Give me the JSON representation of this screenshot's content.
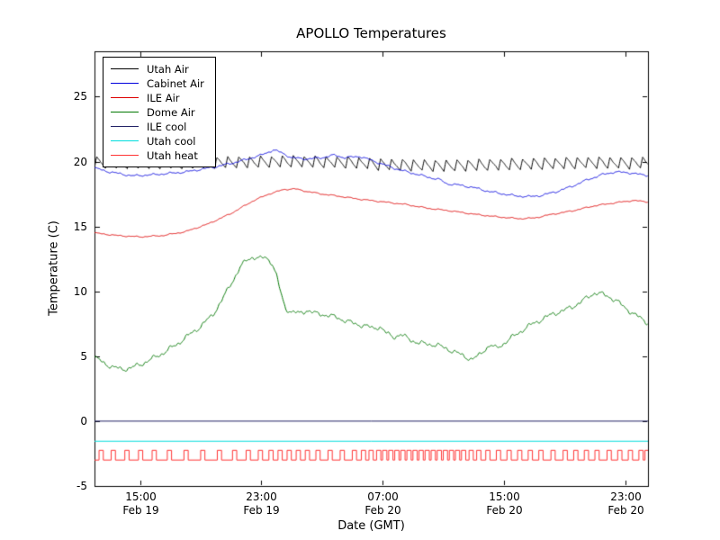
{
  "chart_data": {
    "type": "line",
    "title": "APOLLO Temperatures",
    "xlabel": "Date (GMT)",
    "ylabel": "Temperature (C)",
    "xlim": [
      0,
      36.5
    ],
    "ylim": [
      -5,
      28.5
    ],
    "grid": false,
    "legend_position": "upper left",
    "yticks": [
      -5,
      0,
      5,
      10,
      15,
      20,
      25
    ],
    "xticks": [
      {
        "x": 3,
        "time": "15:00",
        "date": "Feb 19"
      },
      {
        "x": 11,
        "time": "23:00",
        "date": "Feb 19"
      },
      {
        "x": 19,
        "time": "07:00",
        "date": "Feb 20"
      },
      {
        "x": 27,
        "time": "15:00",
        "date": "Feb 20"
      },
      {
        "x": 35,
        "time": "23:00",
        "date": "Feb 20"
      }
    ],
    "x_units": "hours since Feb 19 12:00 GMT",
    "series": [
      {
        "name": "Utah Air",
        "color": "#000000",
        "kind": "anchors",
        "jitter": 0.03,
        "waveform": {
          "type": "sawtooth",
          "period": 0.72,
          "amplitude": 0.85,
          "rise_fraction": 0.2
        },
        "anchors": [
          [
            0,
            19.5
          ],
          [
            4,
            19.45
          ],
          [
            8,
            19.5
          ],
          [
            11,
            19.55
          ],
          [
            13,
            19.6
          ],
          [
            15,
            19.55
          ],
          [
            17,
            19.5
          ],
          [
            19,
            19.35
          ],
          [
            21,
            19.3
          ],
          [
            23,
            19.25
          ],
          [
            25,
            19.3
          ],
          [
            27,
            19.35
          ],
          [
            29,
            19.4
          ],
          [
            31,
            19.45
          ],
          [
            33,
            19.5
          ],
          [
            35,
            19.45
          ],
          [
            36.5,
            19.5
          ]
        ]
      },
      {
        "name": "Cabinet Air",
        "color": "#0000dd",
        "kind": "anchors",
        "jitter": 0.05,
        "anchors": [
          [
            0,
            19.5
          ],
          [
            1,
            19.2
          ],
          [
            2.5,
            18.9
          ],
          [
            4,
            19.0
          ],
          [
            6,
            19.2
          ],
          [
            8,
            19.6
          ],
          [
            9.5,
            20.0
          ],
          [
            11,
            20.5
          ],
          [
            11.8,
            20.9
          ],
          [
            12.3,
            20.7
          ],
          [
            13,
            20.3
          ],
          [
            14,
            20.2
          ],
          [
            15,
            20.3
          ],
          [
            15.8,
            20.5
          ],
          [
            16.5,
            20.3
          ],
          [
            17.5,
            20.4
          ],
          [
            18,
            20.2
          ],
          [
            19,
            19.8
          ],
          [
            20,
            19.4
          ],
          [
            21,
            19.1
          ],
          [
            22,
            18.8
          ],
          [
            22.8,
            18.6
          ],
          [
            23.2,
            18.3
          ],
          [
            24,
            18.2
          ],
          [
            25,
            18.0
          ],
          [
            26,
            17.7
          ],
          [
            27,
            17.5
          ],
          [
            27.8,
            17.35
          ],
          [
            28.8,
            17.3
          ],
          [
            29.5,
            17.4
          ],
          [
            30.5,
            17.7
          ],
          [
            31.5,
            18.1
          ],
          [
            32.5,
            18.6
          ],
          [
            33.5,
            19.0
          ],
          [
            34.3,
            19.2
          ],
          [
            35.2,
            19.15
          ],
          [
            36,
            19.0
          ],
          [
            36.5,
            18.95
          ]
        ]
      },
      {
        "name": "ILE Air",
        "color": "#dd0000",
        "kind": "anchors",
        "jitter": 0.03,
        "anchors": [
          [
            0,
            14.5
          ],
          [
            1.5,
            14.3
          ],
          [
            3,
            14.2
          ],
          [
            4.5,
            14.3
          ],
          [
            6,
            14.6
          ],
          [
            7.5,
            15.2
          ],
          [
            9,
            16.0
          ],
          [
            10.5,
            17.0
          ],
          [
            11.5,
            17.5
          ],
          [
            12.5,
            17.85
          ],
          [
            13.2,
            17.9
          ],
          [
            14,
            17.7
          ],
          [
            15,
            17.5
          ],
          [
            16,
            17.35
          ],
          [
            17.5,
            17.1
          ],
          [
            19,
            16.9
          ],
          [
            20.5,
            16.7
          ],
          [
            22,
            16.4
          ],
          [
            23.5,
            16.2
          ],
          [
            25,
            15.95
          ],
          [
            26.5,
            15.75
          ],
          [
            28,
            15.6
          ],
          [
            29,
            15.65
          ],
          [
            30,
            15.9
          ],
          [
            31.5,
            16.2
          ],
          [
            33,
            16.6
          ],
          [
            34.5,
            16.85
          ],
          [
            35.5,
            17.0
          ],
          [
            36.5,
            16.9
          ]
        ]
      },
      {
        "name": "Dome Air",
        "color": "#007700",
        "kind": "anchors",
        "jitter": 0.12,
        "anchors": [
          [
            0,
            4.9
          ],
          [
            0.6,
            4.5
          ],
          [
            1.2,
            4.15
          ],
          [
            1.8,
            4.0
          ],
          [
            2.4,
            4.1
          ],
          [
            3,
            4.35
          ],
          [
            3.8,
            4.8
          ],
          [
            4.6,
            5.3
          ],
          [
            5.4,
            5.9
          ],
          [
            6.2,
            6.6
          ],
          [
            7,
            7.3
          ],
          [
            7.8,
            8.2
          ],
          [
            8.4,
            9.3
          ],
          [
            9,
            10.6
          ],
          [
            9.6,
            11.8
          ],
          [
            10,
            12.4
          ],
          [
            10.4,
            12.65
          ],
          [
            10.9,
            12.5
          ],
          [
            11.3,
            12.65
          ],
          [
            11.7,
            12.2
          ],
          [
            12,
            11.2
          ],
          [
            12.3,
            9.8
          ],
          [
            12.6,
            8.7
          ],
          [
            13,
            8.4
          ],
          [
            13.5,
            8.3
          ],
          [
            14,
            8.55
          ],
          [
            14.5,
            8.3
          ],
          [
            15,
            8.25
          ],
          [
            15.5,
            8.1
          ],
          [
            16,
            8.0
          ],
          [
            16.6,
            7.7
          ],
          [
            17.2,
            7.5
          ],
          [
            17.8,
            7.35
          ],
          [
            18.4,
            7.15
          ],
          [
            18.8,
            7.3
          ],
          [
            19.2,
            6.8
          ],
          [
            19.7,
            6.5
          ],
          [
            20.2,
            6.65
          ],
          [
            20.8,
            6.3
          ],
          [
            21.4,
            6.0
          ],
          [
            22,
            5.95
          ],
          [
            22.6,
            5.85
          ],
          [
            23.2,
            5.6
          ],
          [
            23.8,
            5.3
          ],
          [
            24.4,
            5.0
          ],
          [
            24.9,
            4.75
          ],
          [
            25.3,
            5.0
          ],
          [
            25.7,
            5.5
          ],
          [
            26.1,
            5.85
          ],
          [
            26.5,
            5.6
          ],
          [
            27,
            6.0
          ],
          [
            27.6,
            6.5
          ],
          [
            28.2,
            7.0
          ],
          [
            28.9,
            7.5
          ],
          [
            29.6,
            7.9
          ],
          [
            30.3,
            8.3
          ],
          [
            30.9,
            8.5
          ],
          [
            31.5,
            8.8
          ],
          [
            32.1,
            9.2
          ],
          [
            32.6,
            9.6
          ],
          [
            33,
            9.9
          ],
          [
            33.4,
            9.8
          ],
          [
            33.9,
            9.6
          ],
          [
            34.4,
            9.3
          ],
          [
            34.9,
            8.8
          ],
          [
            35.4,
            8.4
          ],
          [
            35.9,
            8.0
          ],
          [
            36.3,
            7.7
          ],
          [
            36.5,
            7.6
          ]
        ]
      },
      {
        "name": "ILE cool",
        "color": "#222266",
        "kind": "const",
        "y": 0.0
      },
      {
        "name": "Utah cool",
        "color": "#00dddd",
        "kind": "const",
        "y": -1.55
      },
      {
        "name": "Utah heat",
        "color": "#ff3333",
        "kind": "pulses",
        "base": -3.0,
        "high": -2.25,
        "width": 0.28,
        "pulses": [
          0.3,
          1.1,
          2.0,
          2.9,
          3.8,
          4.8,
          5.9,
          7.0,
          8.1,
          9.1,
          10.0,
          10.8,
          11.5,
          12.1,
          12.7,
          13.3,
          13.9,
          14.6,
          15.4,
          16.2,
          17.0,
          17.6,
          18.1,
          18.6,
          19.0,
          19.4,
          19.8,
          20.2,
          20.6,
          21.0,
          21.4,
          21.8,
          22.2,
          22.6,
          23.0,
          23.4,
          23.8,
          24.2,
          24.7,
          25.2,
          25.8,
          26.5,
          27.2,
          27.9,
          28.6,
          29.3,
          30.1,
          30.9,
          31.6,
          32.3,
          33.0,
          33.8,
          34.5,
          35.2,
          35.9,
          36.3
        ]
      }
    ]
  }
}
